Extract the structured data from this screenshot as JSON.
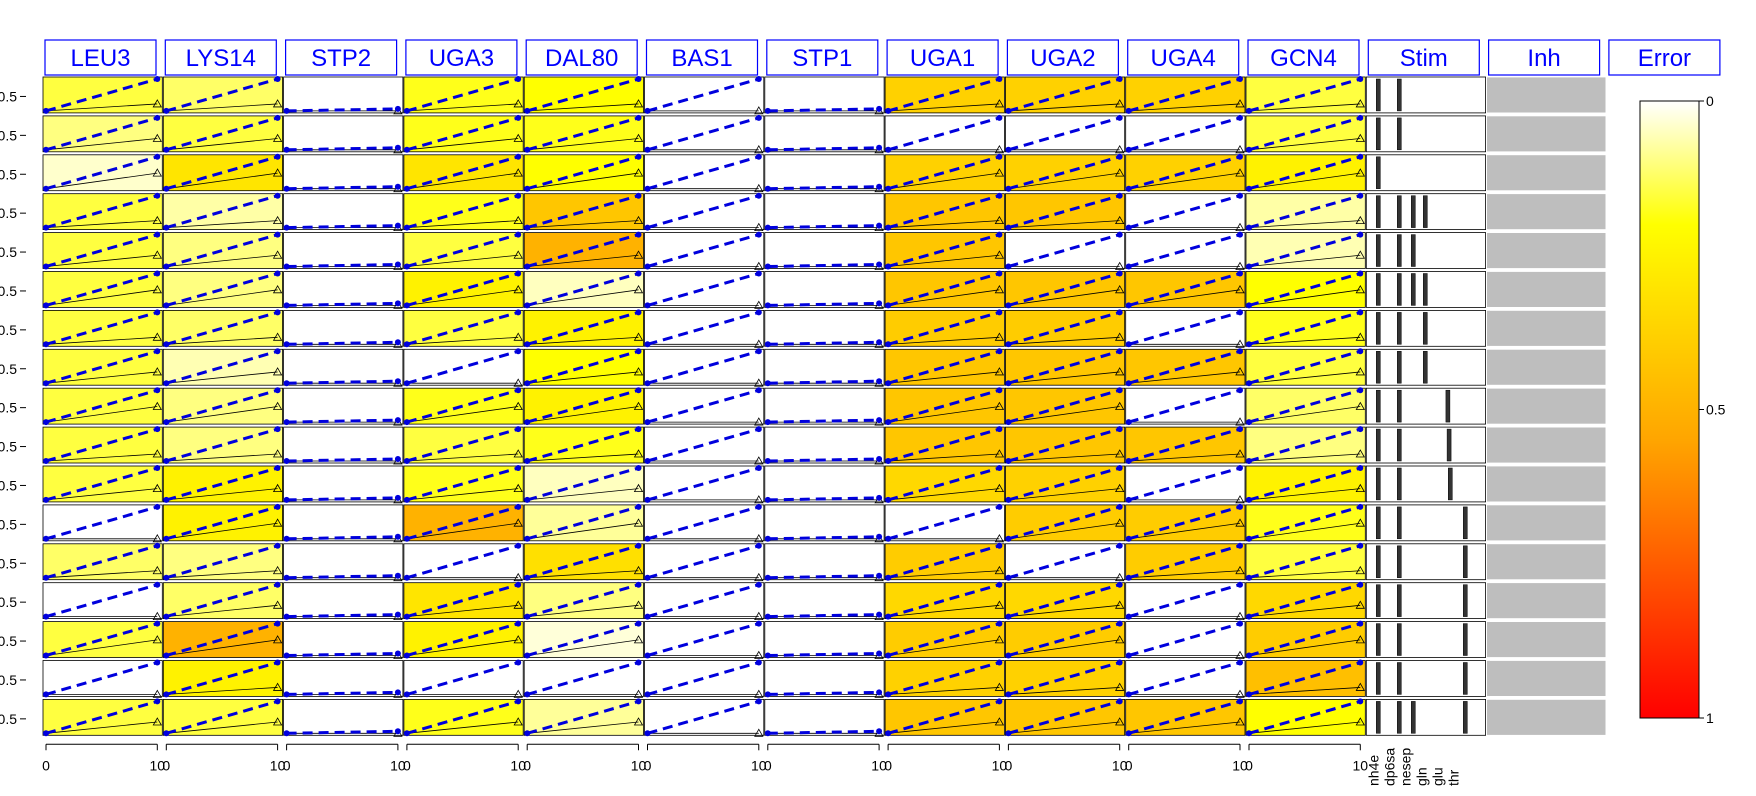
{
  "chart_data": {
    "type": "heatmap",
    "columns": [
      "LEU3",
      "LYS14",
      "STP2",
      "UGA3",
      "DAL80",
      "BAS1",
      "STP1",
      "UGA1",
      "UGA2",
      "UGA4",
      "GCN4"
    ],
    "extra_columns": [
      "Stim",
      "Inh",
      "Error"
    ],
    "row_count": 17,
    "y_tick_label": "0.5",
    "x_ticks": [
      "0",
      "10"
    ],
    "stimuli": [
      "nh4e",
      "dp6sa",
      "nesep",
      "gln",
      "glu",
      "thr"
    ],
    "colorbar": {
      "label": "Error",
      "ticks": [
        "0",
        "0.5",
        "1"
      ],
      "range": [
        0,
        1
      ],
      "low_color": "#ffffff",
      "mid_colors": [
        "#ffff00",
        "#ffa500"
      ],
      "high_color": "#ff0000"
    },
    "inh_fill": "#bebebe",
    "error_matrix": [
      [
        0.15,
        0.12,
        0.0,
        0.18,
        0.2,
        0.0,
        0.0,
        0.38,
        0.38,
        0.38,
        0.15
      ],
      [
        0.1,
        0.15,
        0.0,
        0.18,
        0.18,
        0.0,
        0.0,
        0.0,
        0.0,
        0.0,
        0.15
      ],
      [
        0.04,
        0.3,
        0.0,
        0.3,
        0.2,
        0.0,
        0.0,
        0.38,
        0.38,
        0.38,
        0.25
      ],
      [
        0.15,
        0.07,
        0.0,
        0.18,
        0.42,
        0.0,
        0.0,
        0.42,
        0.42,
        0.0,
        0.07
      ],
      [
        0.15,
        0.1,
        0.0,
        0.15,
        0.5,
        0.0,
        0.0,
        0.42,
        0.0,
        0.0,
        0.06
      ],
      [
        0.15,
        0.1,
        0.0,
        0.25,
        0.05,
        0.0,
        0.0,
        0.42,
        0.42,
        0.42,
        0.2
      ],
      [
        0.15,
        0.12,
        0.0,
        0.15,
        0.25,
        0.0,
        0.0,
        0.4,
        0.4,
        0.0,
        0.18
      ],
      [
        0.15,
        0.06,
        0.0,
        0.0,
        0.2,
        0.0,
        0.0,
        0.42,
        0.42,
        0.42,
        0.15
      ],
      [
        0.15,
        0.1,
        0.0,
        0.18,
        0.25,
        0.0,
        0.0,
        0.42,
        0.42,
        0.0,
        0.12
      ],
      [
        0.15,
        0.1,
        0.0,
        0.15,
        0.18,
        0.0,
        0.0,
        0.42,
        0.42,
        0.42,
        0.1
      ],
      [
        0.15,
        0.25,
        0.0,
        0.18,
        0.05,
        0.0,
        0.0,
        0.35,
        0.38,
        0.0,
        0.25
      ],
      [
        0.0,
        0.25,
        0.0,
        0.5,
        0.08,
        0.0,
        0.0,
        0.0,
        0.4,
        0.4,
        0.18
      ],
      [
        0.12,
        0.1,
        0.0,
        0.0,
        0.32,
        0.0,
        0.0,
        0.4,
        0.0,
        0.4,
        0.15
      ],
      [
        0.0,
        0.12,
        0.0,
        0.3,
        0.1,
        0.0,
        0.0,
        0.35,
        0.35,
        0.0,
        0.35
      ],
      [
        0.15,
        0.5,
        0.0,
        0.25,
        0.03,
        0.0,
        0.0,
        0.4,
        0.4,
        0.0,
        0.4
      ],
      [
        0.0,
        0.25,
        0.0,
        0.0,
        0.0,
        0.0,
        0.0,
        0.38,
        0.38,
        0.0,
        0.45
      ],
      [
        0.15,
        0.15,
        0.0,
        0.18,
        0.08,
        0.0,
        0.0,
        0.42,
        0.42,
        0.42,
        0.2
      ]
    ],
    "stim_matrix": [
      [
        1,
        1,
        0,
        0,
        0,
        0
      ],
      [
        1,
        1,
        0,
        0,
        0,
        0
      ],
      [
        1,
        0,
        0,
        0,
        0,
        0
      ],
      [
        1,
        1,
        1,
        1,
        0,
        0
      ],
      [
        1,
        1,
        1,
        0,
        0,
        0
      ],
      [
        1,
        1,
        1,
        1,
        0,
        0
      ],
      [
        1,
        1,
        0,
        1,
        0,
        0
      ],
      [
        1,
        1,
        0,
        1,
        0,
        0
      ],
      [
        1,
        1,
        0,
        0,
        1,
        0
      ],
      [
        1,
        1,
        0,
        0,
        1,
        0
      ],
      [
        1,
        1,
        0,
        0,
        1,
        0
      ],
      [
        1,
        1,
        0,
        0,
        0,
        1
      ],
      [
        1,
        1,
        0,
        0,
        0,
        1
      ],
      [
        1,
        1,
        0,
        0,
        0,
        1
      ],
      [
        1,
        1,
        0,
        0,
        0,
        1
      ],
      [
        1,
        1,
        0,
        0,
        0,
        1
      ],
      [
        1,
        1,
        1,
        0,
        0,
        1
      ]
    ]
  }
}
